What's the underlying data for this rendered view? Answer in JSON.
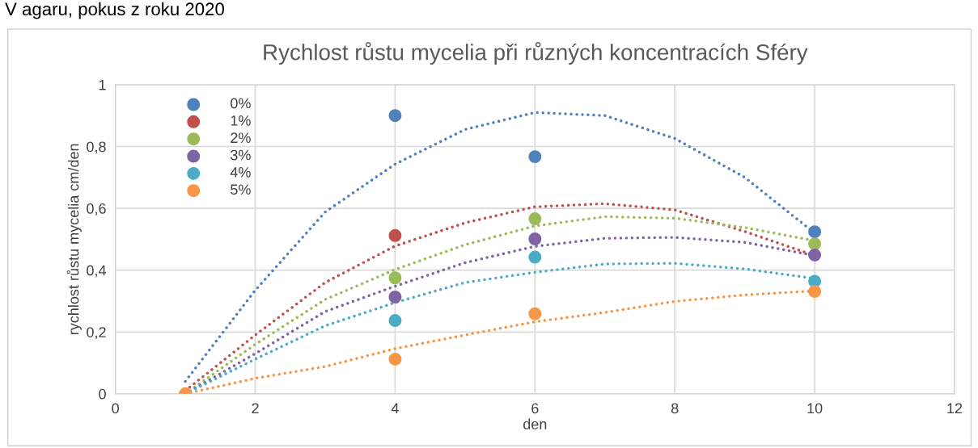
{
  "chart_data": {
    "type": "scatter",
    "title": "Rychlost růstu mycelia při různých koncentracích Sféry",
    "xlabel": "den",
    "ylabel": "rychlost růstu mycelia cm/den",
    "annotations": [
      "V agaru, pokus z roku 2020"
    ],
    "x": [
      1,
      4,
      6,
      10
    ],
    "series": [
      {
        "name": "0%",
        "color": "#4f81bd",
        "values": [
          null,
          0.9,
          0.767,
          0.524
        ]
      },
      {
        "name": "1%",
        "color": "#c0504d",
        "values": [
          null,
          0.512,
          null,
          null
        ]
      },
      {
        "name": "2%",
        "color": "#9bbb59",
        "values": [
          null,
          0.375,
          0.566,
          0.485
        ]
      },
      {
        "name": "3%",
        "color": "#8064a2",
        "values": [
          null,
          0.313,
          0.501,
          0.449
        ]
      },
      {
        "name": "4%",
        "color": "#4bacc6",
        "values": [
          null,
          0.237,
          0.442,
          0.364
        ]
      },
      {
        "name": "5%",
        "color": "#f79646",
        "values": [
          0,
          0.112,
          0.259,
          0.331
        ]
      },
      {
        "type": "line",
        "line_style": "dotted",
        "marker": "none",
        "color": "#4f81bd",
        "x": [
          1,
          2,
          3,
          4,
          5,
          6,
          7,
          8,
          9,
          10
        ],
        "values": [
          0.04,
          0.335,
          0.588,
          0.743,
          0.855,
          0.91,
          0.9,
          0.826,
          0.7,
          0.52
        ]
      },
      {
        "type": "line",
        "line_style": "dotted",
        "marker": "none",
        "color": "#c0504d",
        "x": [
          1,
          2,
          3,
          4,
          5,
          6,
          7,
          8,
          9,
          10
        ],
        "values": [
          0.01,
          0.19,
          0.36,
          0.478,
          0.553,
          0.605,
          0.615,
          0.595,
          0.525,
          0.447
        ]
      },
      {
        "type": "line",
        "line_style": "dotted",
        "marker": "none",
        "color": "#9bbb59",
        "x": [
          1,
          2,
          3,
          4,
          5,
          6,
          7,
          8,
          9,
          10
        ],
        "values": [
          0,
          0.16,
          0.305,
          0.402,
          0.482,
          0.543,
          0.573,
          0.568,
          0.538,
          0.495
        ]
      },
      {
        "type": "line",
        "line_style": "dotted",
        "marker": "none",
        "color": "#8064a2",
        "x": [
          1,
          2,
          3,
          4,
          5,
          6,
          7,
          8,
          9,
          10
        ],
        "values": [
          0,
          0.13,
          0.266,
          0.348,
          0.424,
          0.477,
          0.503,
          0.506,
          0.49,
          0.447
        ]
      },
      {
        "type": "line",
        "line_style": "dotted",
        "marker": "none",
        "color": "#4bacc6",
        "x": [
          1,
          2,
          3,
          4,
          5,
          6,
          7,
          8,
          9,
          10
        ],
        "values": [
          0,
          0.112,
          0.22,
          0.295,
          0.36,
          0.393,
          0.42,
          0.422,
          0.404,
          0.373
        ]
      },
      {
        "type": "line",
        "line_style": "dotted",
        "marker": "none",
        "color": "#f79646",
        "x": [
          1,
          2,
          3,
          4,
          5,
          6,
          7,
          8,
          9,
          10
        ],
        "values": [
          0,
          0.05,
          0.088,
          0.146,
          0.19,
          0.233,
          0.263,
          0.299,
          0.32,
          0.333
        ]
      }
    ],
    "xlim": [
      0,
      12
    ],
    "xticks": [
      0,
      2,
      4,
      6,
      8,
      10,
      12
    ],
    "ylim": [
      0,
      1
    ],
    "yticks": [
      0,
      {
        "value": 0.2,
        "label": "0,2"
      },
      {
        "value": 0.4,
        "label": "0,4"
      },
      {
        "value": 0.6,
        "label": "0,6"
      },
      {
        "value": 0.8,
        "label": "0,8"
      },
      1
    ],
    "grid": true,
    "legend": "top left",
    "marker": "circle"
  }
}
